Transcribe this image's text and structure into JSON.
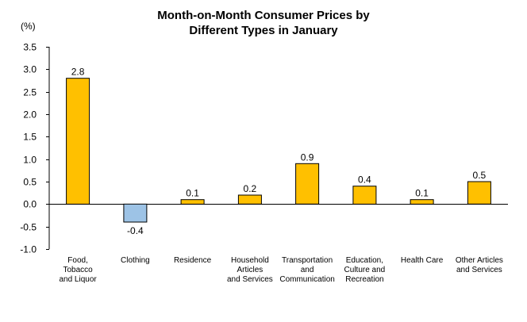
{
  "chart_data": {
    "type": "bar",
    "title_lines": [
      "Month-on-Month Consumer Prices by",
      "Different Types in January"
    ],
    "unit_label": "(%)",
    "categories": [
      [
        "Food,",
        "Tobacco",
        "and Liquor"
      ],
      [
        "Clothing"
      ],
      [
        "Residence"
      ],
      [
        "Household",
        "Articles",
        "and Services"
      ],
      [
        "Transportation",
        "and",
        "Communication"
      ],
      [
        "Education,",
        "Culture and",
        "Recreation"
      ],
      [
        "Health Care"
      ],
      [
        "Other Articles",
        "and Services"
      ]
    ],
    "values": [
      2.8,
      -0.4,
      0.1,
      0.2,
      0.9,
      0.4,
      0.1,
      0.5
    ],
    "value_labels": [
      "2.8",
      "-0.4",
      "0.1",
      "0.2",
      "0.9",
      "0.4",
      "0.1",
      "0.5"
    ],
    "ylim": [
      -1.0,
      3.5
    ],
    "yticks": [
      "3.5",
      "3.0",
      "2.5",
      "2.0",
      "1.5",
      "1.0",
      "0.5",
      "0.0",
      "-0.5",
      "-1.0"
    ],
    "ytick_values": [
      3.5,
      3.0,
      2.5,
      2.0,
      1.5,
      1.0,
      0.5,
      0.0,
      -0.5,
      -1.0
    ],
    "colors": {
      "positive": "#FFC000",
      "negative": "#9DC3E6",
      "border": "#000000"
    },
    "grid": false,
    "legend": "none"
  }
}
